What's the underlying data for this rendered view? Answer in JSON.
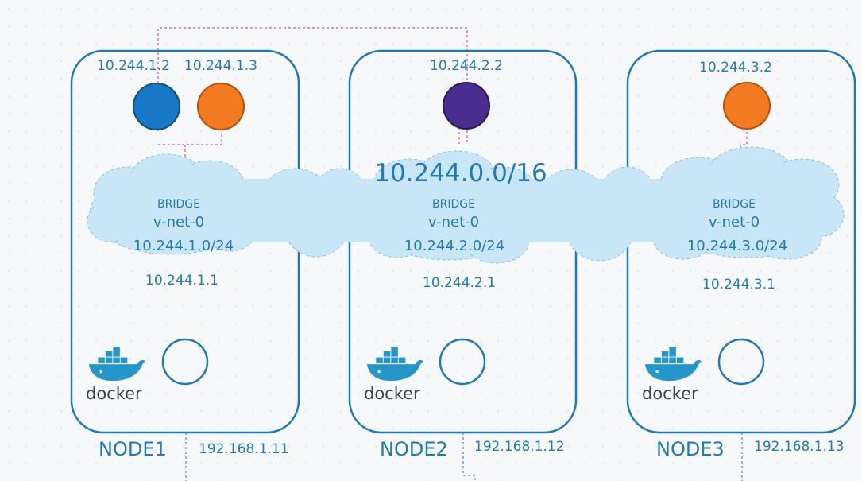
{
  "network": {
    "cidr": "10.244.0.0/16"
  },
  "nodes": [
    {
      "label": "NODE1",
      "node_ip": "192.168.1.11",
      "bridge": {
        "type": "BRIDGE",
        "name": "v-net-0",
        "subnet": "10.244.1.0/24",
        "gateway": "10.244.1.1"
      },
      "pods": [
        {
          "ip": "10.244.1.2",
          "color": "#1778c7"
        },
        {
          "ip": "10.244.1.3",
          "color": "#f37a20"
        }
      ],
      "runtime": "docker"
    },
    {
      "label": "NODE2",
      "node_ip": "192.168.1.12",
      "bridge": {
        "type": "BRIDGE",
        "name": "v-net-0",
        "subnet": "10.244.2.0/24",
        "gateway": "10.244.2.1"
      },
      "pods": [
        {
          "ip": "10.244.2.2",
          "color": "#4a2d8f"
        }
      ],
      "runtime": "docker"
    },
    {
      "label": "NODE3",
      "node_ip": "192.168.1.13",
      "bridge": {
        "type": "BRIDGE",
        "name": "v-net-0",
        "subnet": "10.244.3.0/24",
        "gateway": "10.244.3.1"
      },
      "pods": [
        {
          "ip": "10.244.3.2",
          "color": "#f37a20"
        }
      ],
      "runtime": "docker"
    }
  ],
  "colors": {
    "node_border": "#1f79bd",
    "cloud_fill": "#c9e6f7",
    "cloud_stroke": "#8ec3e6",
    "link_dashed": "#d6277d",
    "text": "#1f79bd",
    "docker_blue": "#2496c9"
  },
  "icons": {
    "runtime": "docker-whale-icon",
    "interface": "empty-circle-icon"
  }
}
